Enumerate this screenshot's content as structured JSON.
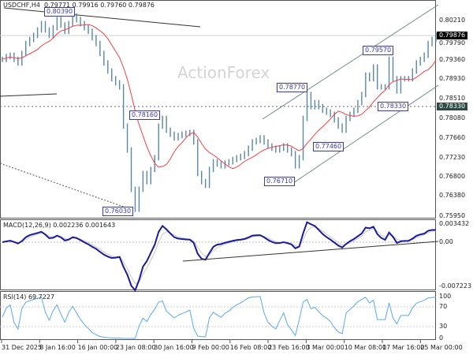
{
  "header": {
    "symbol": "USDCHF,H4",
    "ohlc": "0.79771 0.79916 0.79760 0.79876"
  },
  "watermark": "ActionForex",
  "colors": {
    "bars": "#5a87a3",
    "ma": "#f04040",
    "macd": "#1a1a9a",
    "signal": "#c0c0c0",
    "rsi": "#5aa8f0",
    "label": "#3a3aa8"
  },
  "chart_data": [
    {
      "type": "bar",
      "panel": "price",
      "title": "USDCHF,H4",
      "yticks": [
        "0.80210",
        "0.79790",
        "0.79360",
        "0.78930",
        "0.78510",
        "0.78080",
        "0.77660",
        "0.77230",
        "0.76800",
        "0.76380",
        "0.75950"
      ],
      "ylim": [
        0.7595,
        0.8045
      ],
      "xticks": [
        "31 Dec 2025",
        "8 Jan 16:00",
        "16 Jan 00:00",
        "23 Jan 08:00",
        "30 Jan 16:00",
        "9 Feb 00:00",
        "16 Feb 08:00",
        "23 Feb 16:00",
        "3 Mar 00:00",
        "10 Mar 08:00",
        "17 Mar 16:00",
        "25 Mar 00:00"
      ],
      "close": [
        0.7935,
        0.7941,
        0.7944,
        0.7935,
        0.7927,
        0.7948,
        0.797,
        0.7979,
        0.7988,
        0.8,
        0.8014,
        0.8,
        0.7988,
        0.8005,
        0.8023,
        0.8011,
        0.7997,
        0.8014,
        0.8031,
        0.8023,
        0.8014,
        0.8005,
        0.7997,
        0.7983,
        0.797,
        0.7948,
        0.7927,
        0.7909,
        0.7892,
        0.7883,
        0.7874,
        0.7787,
        0.7734,
        0.7647,
        0.7603,
        0.7647,
        0.7682,
        0.7664,
        0.7691,
        0.7717,
        0.7787,
        0.7804,
        0.7778,
        0.7769,
        0.7761,
        0.7766,
        0.7769,
        0.7771,
        0.7773,
        0.7752,
        0.7682,
        0.7664,
        0.7656,
        0.7691,
        0.7708,
        0.7703,
        0.7699,
        0.7705,
        0.7708,
        0.7713,
        0.7717,
        0.772,
        0.7726,
        0.7738,
        0.7752,
        0.7755,
        0.7761,
        0.7752,
        0.7743,
        0.7738,
        0.7734,
        0.7738,
        0.7743,
        0.7734,
        0.7726,
        0.7699,
        0.7717,
        0.7804,
        0.7857,
        0.783,
        0.7839,
        0.783,
        0.7822,
        0.7818,
        0.7813,
        0.7801,
        0.7787,
        0.7778,
        0.7804,
        0.7813,
        0.7822,
        0.7839,
        0.7857,
        0.79,
        0.7892,
        0.7918,
        0.7874,
        0.7874,
        0.7874,
        0.7935,
        0.7892,
        0.7865,
        0.7892,
        0.7892,
        0.7892,
        0.7909,
        0.7927,
        0.7935,
        0.7944,
        0.797,
        0.7979,
        0.79876
      ],
      "annotations": [
        "0.80390",
        "0.78160",
        "0.76030",
        "0.78770",
        "0.76710",
        "0.77460",
        "0.79570",
        "0.78330"
      ],
      "current_price": "0.79876",
      "support_level": "0.78330"
    },
    {
      "type": "line",
      "panel": "macd",
      "title": "MACD(12,26,9) 0.002236 0.001643",
      "yticks": [
        "0.003432",
        "0.00",
        "-0.007223"
      ]
    },
    {
      "type": "line",
      "panel": "rsi",
      "title": "RSI(14) 69.7227",
      "yticks": [
        "100",
        "70",
        "30",
        "0"
      ],
      "levels": [
        70,
        30
      ]
    }
  ]
}
